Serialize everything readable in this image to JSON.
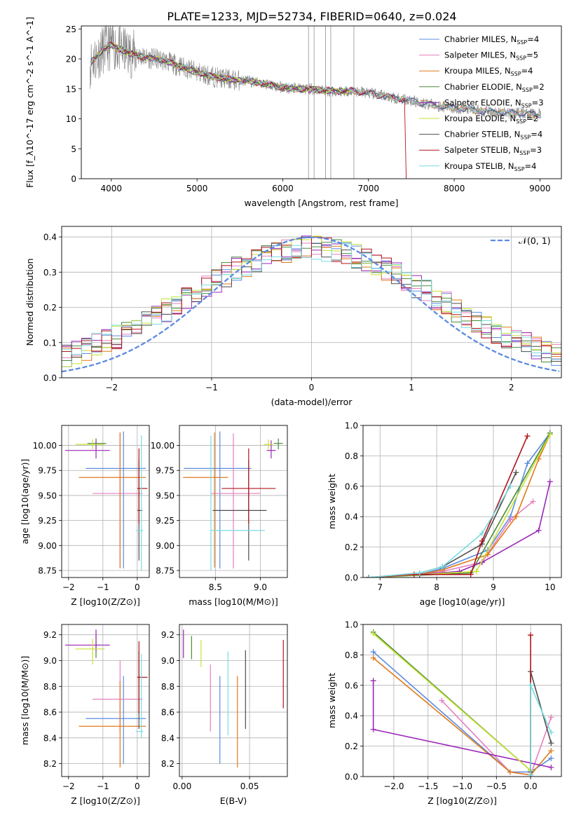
{
  "figure_title": "PLATE=1233, MJD=52734, FIBERID=0640, z=0.024",
  "colors": {
    "Chabrier MILES": "#5b8be0",
    "Salpeter MILES": "#e57fbf",
    "Kroupa MILES": "#e07a1a",
    "Chabrier ELODIE": "#4a8a3a",
    "Salpeter ELODIE": "#9a27b8",
    "Kroupa ELODIE": "#c6e232",
    "Chabrier STELIB": "#4d4d4d",
    "Salpeter STELIB": "#b0141d",
    "Kroupa STELIB": "#78dce0",
    "data": "#808080",
    "gaussian": "#5b8be0",
    "grid": "#b0b0b0"
  },
  "legend_spectrum": [
    {
      "name": "Chabrier MILES",
      "n": "4"
    },
    {
      "name": "Salpeter MILES",
      "n": "5"
    },
    {
      "name": "Kroupa MILES",
      "n": "4"
    },
    {
      "name": "Chabrier ELODIE",
      "n": "2"
    },
    {
      "name": "Salpeter ELODIE",
      "n": "3"
    },
    {
      "name": "Kroupa ELODIE",
      "n": "2"
    },
    {
      "name": "Chabrier STELIB",
      "n": "4"
    },
    {
      "name": "Salpeter STELIB",
      "n": "3"
    },
    {
      "name": "Kroupa STELIB",
      "n": "4"
    }
  ],
  "legend_nsp_label": "N",
  "legend_nsp_sub": "SSP",
  "legend_gauss": "𝒩(0, 1)",
  "chart_data": [
    {
      "id": "spectrum",
      "type": "line",
      "xlabel": "wavelength [Angstrom, rest frame]",
      "ylabel": "Flux [f_λ10^-17 erg cm^-2 s^-1 A^-1]",
      "xlim": [
        3650,
        9250
      ],
      "ylim": [
        0,
        25.5
      ],
      "xticks": [
        4000,
        5000,
        6000,
        7000,
        8000,
        9000
      ],
      "yticks": [
        0,
        5,
        10,
        15,
        20,
        25
      ],
      "grid": false,
      "legend": "upper right",
      "continuum_x": [
        3750,
        3900,
        4000,
        4200,
        4400,
        4600,
        4800,
        5000,
        5200,
        5400,
        5600,
        5800,
        6000,
        6200,
        6400,
        6600,
        6800,
        7000,
        7200,
        7400,
        7600,
        7800,
        8000,
        8200,
        8400,
        8600,
        8800,
        9000
      ],
      "continuum_y": [
        19.2,
        21.5,
        22.3,
        21.0,
        20.2,
        19.8,
        18.8,
        17.8,
        17.0,
        16.5,
        16.3,
        15.8,
        15.2,
        15.0,
        14.9,
        14.6,
        14.7,
        14.3,
        13.7,
        13.3,
        12.7,
        12.2,
        11.8,
        11.5,
        11.2,
        11.0,
        10.9,
        10.7
      ]
    },
    {
      "id": "residuals",
      "type": "line",
      "xlabel": "(data-model)/error",
      "ylabel": "Normed distribution",
      "xlim": [
        -2.5,
        2.5
      ],
      "ylim": [
        0,
        0.43
      ],
      "xticks": [
        -2,
        -1,
        0,
        1,
        2
      ],
      "yticks": [
        0.0,
        0.1,
        0.2,
        0.3,
        0.4
      ],
      "grid": true,
      "legend": "upper right",
      "bin_width": 0.1,
      "gaussian": {
        "mean": 0,
        "sigma": 1
      }
    },
    {
      "id": "age_vs_Z",
      "type": "scatter",
      "xlabel": "Z [log10(Z/Z⊙)]",
      "ylabel": "age [log10(age/yr)]",
      "xlim": [
        -2.2,
        0.35
      ],
      "ylim": [
        8.68,
        10.2
      ],
      "xticks": [
        -2,
        -1,
        0
      ],
      "yticks": [
        8.75,
        9.0,
        9.25,
        9.5,
        9.75,
        10.0
      ],
      "grid": true,
      "points": [
        {
          "model": "Chabrier MILES",
          "x": -0.4,
          "xerr": [
            1.1,
            0.65
          ],
          "y": 9.77,
          "yerr": [
            1.0,
            0.37
          ]
        },
        {
          "model": "Salpeter MILES",
          "x": -0.5,
          "xerr": [
            0.8,
            0.65
          ],
          "y": 9.52,
          "yerr": [
            0.75,
            0.6
          ]
        },
        {
          "model": "Kroupa MILES",
          "x": -0.5,
          "xerr": [
            1.2,
            0.75
          ],
          "y": 9.68,
          "yerr": [
            0.9,
            0.45
          ]
        },
        {
          "model": "Chabrier ELODIE",
          "x": -1.2,
          "xerr": [
            0.25,
            0.3
          ],
          "y": 10.02,
          "yerr": [
            0.06,
            0.05
          ]
        },
        {
          "model": "Salpeter ELODIE",
          "x": -1.2,
          "xerr": [
            0.9,
            0.4
          ],
          "y": 9.95,
          "yerr": [
            0.08,
            0.1
          ]
        },
        {
          "model": "Kroupa ELODIE",
          "x": -1.3,
          "xerr": [
            0.5,
            0.35
          ],
          "y": 10.01,
          "yerr": [
            0.05,
            0.05
          ]
        },
        {
          "model": "Chabrier STELIB",
          "x": 0.05,
          "xerr": [
            0.05,
            0.1
          ],
          "y": 9.35,
          "yerr": [
            0.5,
            0.5
          ]
        },
        {
          "model": "Salpeter STELIB",
          "x": 0.05,
          "xerr": [
            0.05,
            0.25
          ],
          "y": 9.57,
          "yerr": [
            0.35,
            0.4
          ]
        },
        {
          "model": "Kroupa STELIB",
          "x": 0.12,
          "xerr": [
            0.15,
            0.05
          ],
          "y": 9.15,
          "yerr": [
            0.4,
            0.95
          ]
        }
      ]
    },
    {
      "id": "age_vs_mass",
      "type": "scatter",
      "xlabel": "mass [log10(M/M⊙)]",
      "ylabel": "",
      "xlim": [
        8.1,
        9.3
      ],
      "ylim": [
        8.68,
        10.2
      ],
      "xticks": [
        8.5,
        9.0
      ],
      "yticks": [
        8.75,
        9.0,
        9.25,
        9.5,
        9.75,
        10.0
      ],
      "grid": true,
      "points": [
        {
          "model": "Chabrier MILES",
          "x": 8.55,
          "xerr": [
            0.4,
            0.35
          ],
          "y": 9.77,
          "yerr": [
            1.0,
            0.37
          ]
        },
        {
          "model": "Salpeter MILES",
          "x": 8.7,
          "xerr": [
            0.25,
            0.3
          ],
          "y": 9.52,
          "yerr": [
            0.75,
            0.6
          ]
        },
        {
          "model": "Kroupa MILES",
          "x": 8.49,
          "xerr": [
            0.35,
            0.15
          ],
          "y": 9.68,
          "yerr": [
            0.9,
            0.45
          ]
        },
        {
          "model": "Chabrier ELODIE",
          "x": 9.2,
          "xerr": [
            0.05,
            0.05
          ],
          "y": 10.02,
          "yerr": [
            0.06,
            0.05
          ]
        },
        {
          "model": "Salpeter ELODIE",
          "x": 9.12,
          "xerr": [
            0.05,
            0.05
          ],
          "y": 9.95,
          "yerr": [
            0.08,
            0.1
          ]
        },
        {
          "model": "Kroupa ELODIE",
          "x": 9.09,
          "xerr": [
            0.05,
            0.05
          ],
          "y": 10.01,
          "yerr": [
            0.05,
            0.05
          ]
        },
        {
          "model": "Chabrier STELIB",
          "x": 8.87,
          "xerr": [
            0.4,
            0.2
          ],
          "y": 9.35,
          "yerr": [
            0.5,
            0.5
          ]
        },
        {
          "model": "Salpeter STELIB",
          "x": 8.87,
          "xerr": [
            0.3,
            0.3
          ],
          "y": 9.57,
          "yerr": [
            0.35,
            0.4
          ]
        },
        {
          "model": "Kroupa STELIB",
          "x": 8.45,
          "xerr": [
            0.0,
            0.6
          ],
          "y": 9.15,
          "yerr": [
            0.4,
            0.95
          ]
        }
      ]
    },
    {
      "id": "massweight_vs_age",
      "type": "line",
      "xlabel": "age [log10(age/yr)]",
      "ylabel": "mass weight",
      "xlim": [
        6.7,
        10.2
      ],
      "ylim": [
        0,
        1.0
      ],
      "xticks": [
        7,
        8,
        9,
        10
      ],
      "yticks": [
        0.0,
        0.2,
        0.4,
        0.6,
        0.8,
        1.0
      ],
      "grid": true,
      "series": [
        {
          "model": "Chabrier MILES",
          "x": [
            6.8,
            7.7,
            8.1,
            8.9,
            9.3,
            9.6,
            10.0
          ],
          "y": [
            0.0,
            0.02,
            0.06,
            0.18,
            0.4,
            0.75,
            0.95
          ]
        },
        {
          "model": "Salpeter MILES",
          "x": [
            6.8,
            7.7,
            8.1,
            8.8,
            9.3,
            9.7
          ],
          "y": [
            0.0,
            0.02,
            0.04,
            0.1,
            0.38,
            0.5
          ]
        },
        {
          "model": "Kroupa MILES",
          "x": [
            6.8,
            7.7,
            8.1,
            8.9,
            9.4,
            9.8,
            10.0
          ],
          "y": [
            0.0,
            0.02,
            0.05,
            0.15,
            0.4,
            0.78,
            0.94
          ]
        },
        {
          "model": "Chabrier ELODIE",
          "x": [
            6.8,
            8.6,
            10.0
          ],
          "y": [
            0.0,
            0.03,
            0.95
          ]
        },
        {
          "model": "Salpeter ELODIE",
          "x": [
            6.8,
            7.7,
            8.4,
            8.8,
            9.8,
            10.0
          ],
          "y": [
            0.0,
            0.02,
            0.04,
            0.1,
            0.31,
            0.63
          ]
        },
        {
          "model": "Kroupa ELODIE",
          "x": [
            6.8,
            8.7,
            10.0
          ],
          "y": [
            0.0,
            0.04,
            0.94
          ]
        },
        {
          "model": "Chabrier STELIB",
          "x": [
            6.8,
            7.7,
            8.1,
            8.8,
            9.4
          ],
          "y": [
            0.0,
            0.03,
            0.07,
            0.22,
            0.69
          ]
        },
        {
          "model": "Salpeter STELIB",
          "x": [
            6.8,
            7.6,
            8.6,
            8.8,
            9.6
          ],
          "y": [
            0.0,
            0.02,
            0.02,
            0.24,
            0.93
          ]
        },
        {
          "model": "Kroupa STELIB",
          "x": [
            6.8,
            7.7,
            8.1,
            8.8,
            9.3
          ],
          "y": [
            0.0,
            0.03,
            0.07,
            0.29,
            0.6
          ]
        }
      ]
    },
    {
      "id": "mass_vs_Z",
      "type": "scatter",
      "xlabel": "Z [log10(Z/Z⊙)]",
      "ylabel": "mass [log10(M/M⊙)]",
      "xlim": [
        -2.2,
        0.35
      ],
      "ylim": [
        8.1,
        9.28
      ],
      "xticks": [
        -2,
        -1,
        0
      ],
      "yticks": [
        8.2,
        8.4,
        8.6,
        8.8,
        9.0,
        9.2
      ],
      "grid": true,
      "points": [
        {
          "model": "Chabrier MILES",
          "x": -0.4,
          "xerr": [
            1.1,
            0.65
          ],
          "y": 8.55,
          "yerr": [
            0.35,
            0.33
          ]
        },
        {
          "model": "Salpeter MILES",
          "x": -0.5,
          "xerr": [
            0.8,
            0.65
          ],
          "y": 8.7,
          "yerr": [
            0.25,
            0.3
          ]
        },
        {
          "model": "Kroupa MILES",
          "x": -0.5,
          "xerr": [
            1.2,
            0.75
          ],
          "y": 8.49,
          "yerr": [
            0.32,
            0.35
          ]
        },
        {
          "model": "Chabrier ELODIE",
          "x": -1.2,
          "xerr": [
            0.0,
            0.1
          ],
          "y": 9.12,
          "yerr": [
            0.1,
            0.08
          ]
        },
        {
          "model": "Salpeter ELODIE",
          "x": -1.2,
          "xerr": [
            0.9,
            0.4
          ],
          "y": 9.12,
          "yerr": [
            0.05,
            0.12
          ]
        },
        {
          "model": "Kroupa ELODIE",
          "x": -1.3,
          "xerr": [
            0.5,
            0.35
          ],
          "y": 9.09,
          "yerr": [
            0.12,
            0.08
          ]
        },
        {
          "model": "Chabrier STELIB",
          "x": 0.05,
          "xerr": [
            0.05,
            0.1
          ],
          "y": 8.87,
          "yerr": [
            0.4,
            0.2
          ]
        },
        {
          "model": "Salpeter STELIB",
          "x": 0.05,
          "xerr": [
            0.05,
            0.25
          ],
          "y": 8.87,
          "yerr": [
            0.28,
            0.28
          ]
        },
        {
          "model": "Kroupa STELIB",
          "x": 0.12,
          "xerr": [
            0.15,
            0.05
          ],
          "y": 8.45,
          "yerr": [
            0.05,
            0.6
          ]
        }
      ]
    },
    {
      "id": "mass_vs_EBV",
      "type": "scatter",
      "xlabel": "E(B-V)",
      "ylabel": "",
      "xlim": [
        -0.002,
        0.078
      ],
      "ylim": [
        8.1,
        9.28
      ],
      "xticks": [
        0.0,
        0.05
      ],
      "yticks": [
        8.2,
        8.4,
        8.6,
        8.8,
        9.0,
        9.2
      ],
      "grid": true,
      "points": [
        {
          "model": "Chabrier MILES",
          "x": 0.028,
          "xerr": [
            0,
            0
          ],
          "y": 8.55,
          "yerr": [
            0.35,
            0.33
          ]
        },
        {
          "model": "Salpeter MILES",
          "x": 0.021,
          "xerr": [
            0,
            0
          ],
          "y": 8.7,
          "yerr": [
            0.25,
            0.27
          ]
        },
        {
          "model": "Kroupa MILES",
          "x": 0.041,
          "xerr": [
            0,
            0
          ],
          "y": 8.49,
          "yerr": [
            0.32,
            0.39
          ]
        },
        {
          "model": "Chabrier ELODIE",
          "x": 0.007,
          "xerr": [
            0,
            0
          ],
          "y": 9.1,
          "yerr": [
            0.09,
            0.09
          ]
        },
        {
          "model": "Salpeter ELODIE",
          "x": 0.001,
          "xerr": [
            0,
            0
          ],
          "y": 9.12,
          "yerr": [
            0.1,
            0.12
          ]
        },
        {
          "model": "Kroupa ELODIE",
          "x": 0.014,
          "xerr": [
            0,
            0
          ],
          "y": 9.07,
          "yerr": [
            0.12,
            0.09
          ]
        },
        {
          "model": "Chabrier STELIB",
          "x": 0.047,
          "xerr": [
            0,
            0
          ],
          "y": 8.77,
          "yerr": [
            0.3,
            0.31
          ]
        },
        {
          "model": "Salpeter STELIB",
          "x": 0.075,
          "xerr": [
            0,
            0
          ],
          "y": 8.89,
          "yerr": [
            0.26,
            0.27
          ]
        },
        {
          "model": "Kroupa STELIB",
          "x": 0.034,
          "xerr": [
            0,
            0
          ],
          "y": 8.74,
          "yerr": [
            0.32,
            0.33
          ]
        }
      ]
    },
    {
      "id": "massweight_vs_Z",
      "type": "line",
      "xlabel": "Z [log10(Z/Z⊙)]",
      "ylabel": "mass weight",
      "xlim": [
        -2.45,
        0.45
      ],
      "ylim": [
        0,
        1.0
      ],
      "xticks": [
        -2.0,
        -1.5,
        -1.0,
        -0.5,
        0.0
      ],
      "yticks": [
        0.0,
        0.2,
        0.4,
        0.6,
        0.8,
        1.0
      ],
      "grid": true,
      "series": [
        {
          "model": "Chabrier MILES",
          "x": [
            -2.3,
            -0.3,
            0.0,
            0.3
          ],
          "y": [
            0.82,
            0.03,
            0.03,
            0.12
          ]
        },
        {
          "model": "Salpeter MILES",
          "x": [
            -1.3,
            -0.3,
            0.0,
            0.3
          ],
          "y": [
            0.5,
            0.03,
            0.01,
            0.39
          ]
        },
        {
          "model": "Kroupa MILES",
          "x": [
            -2.3,
            -0.3,
            0.0,
            0.3
          ],
          "y": [
            0.78,
            0.03,
            0.01,
            0.17
          ]
        },
        {
          "model": "Chabrier ELODIE",
          "x": [
            -2.3,
            0.0
          ],
          "y": [
            0.95,
            0.04
          ]
        },
        {
          "model": "Salpeter ELODIE",
          "x": [
            -2.3,
            -2.3,
            0.3
          ],
          "y": [
            0.63,
            0.31,
            0.06
          ]
        },
        {
          "model": "Kroupa ELODIE",
          "x": [
            -2.3,
            0.0
          ],
          "y": [
            0.94,
            0.04
          ]
        },
        {
          "model": "Chabrier STELIB",
          "x": [
            0.0,
            0.0,
            0.3
          ],
          "y": [
            0.03,
            0.69,
            0.22
          ]
        },
        {
          "model": "Salpeter STELIB",
          "x": [
            0.0,
            0.0
          ],
          "y": [
            0.01,
            0.93
          ]
        },
        {
          "model": "Kroupa STELIB",
          "x": [
            0.0,
            0.0,
            0.3
          ],
          "y": [
            0.01,
            0.6,
            0.29
          ]
        }
      ]
    }
  ]
}
